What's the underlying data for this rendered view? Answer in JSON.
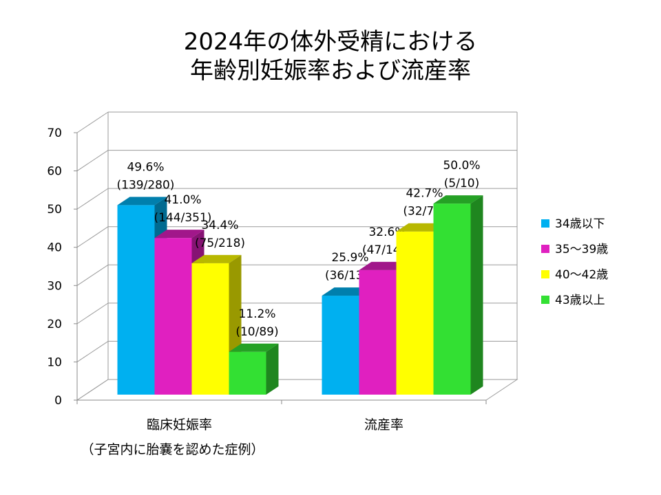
{
  "title": {
    "line1": "2024年の体外受精における",
    "line2": "年齢別妊娠率および流産率"
  },
  "chart_data": {
    "type": "bar",
    "categories": [
      "臨床妊娠率",
      "流産率"
    ],
    "category_notes": [
      "（子宮内に胎嚢を認めた症例）",
      ""
    ],
    "yticks": [
      "0",
      "10",
      "20",
      "30",
      "40",
      "50",
      "60",
      "70"
    ],
    "ylim": [
      0,
      70
    ],
    "grid": true,
    "legend_position": "right",
    "series": [
      {
        "name": "34歳以下",
        "color": "#00b0f0",
        "values": [
          49.6,
          25.9
        ],
        "labels": [
          [
            "49.6%",
            "(139/280)"
          ],
          [
            "25.9%",
            "(36/139)"
          ]
        ]
      },
      {
        "name": "35～39歳",
        "color": "#e020c0",
        "values": [
          41.0,
          32.6
        ],
        "labels": [
          [
            "41.0%",
            "(144/351)"
          ],
          [
            "32.6%",
            "(47/144)"
          ]
        ]
      },
      {
        "name": "40～42歳",
        "color": "#ffff00",
        "values": [
          34.4,
          42.7
        ],
        "labels": [
          [
            "34.4%",
            "(75/218)"
          ],
          [
            "42.7%",
            "(32/75)"
          ]
        ]
      },
      {
        "name": "43歳以上",
        "color": "#33e033",
        "values": [
          11.2,
          50.0
        ],
        "labels": [
          [
            "11.2%",
            "(10/89)"
          ],
          [
            "50.0%",
            "(5/10)"
          ]
        ]
      }
    ]
  }
}
